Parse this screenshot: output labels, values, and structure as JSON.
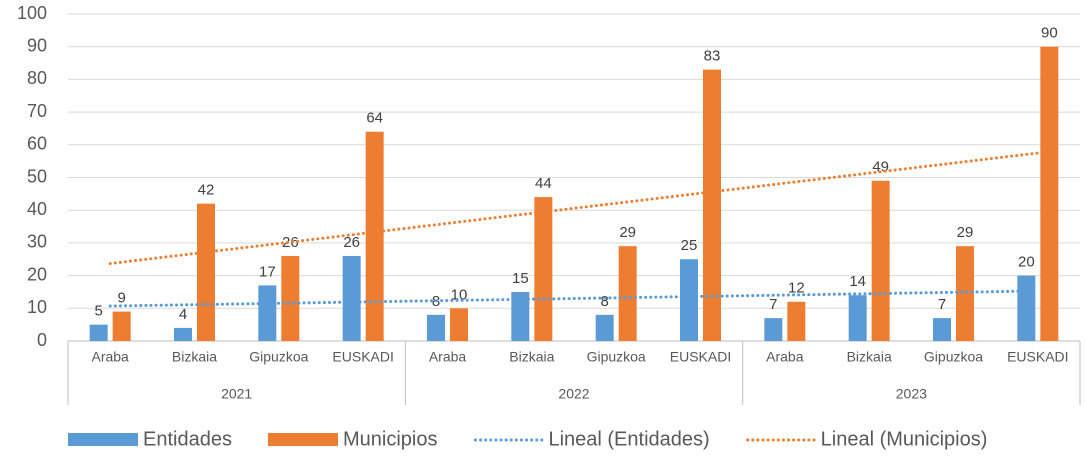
{
  "chart_data": {
    "type": "bar",
    "categories": [
      "Araba",
      "Bizkaia",
      "Gipuzkoa",
      "EUSKADI",
      "Araba",
      "Bizkaia",
      "Gipuzkoa",
      "EUSKADI",
      "Araba",
      "Bizkaia",
      "Gipuzkoa",
      "EUSKADI"
    ],
    "category_groups": [
      "2021",
      "2022",
      "2023"
    ],
    "series": [
      {
        "name": "Entidades",
        "color": "#5b9bd5",
        "values": [
          5,
          4,
          17,
          26,
          8,
          15,
          8,
          25,
          7,
          14,
          7,
          20
        ]
      },
      {
        "name": "Municipios",
        "color": "#ed7d31",
        "values": [
          9,
          42,
          26,
          64,
          10,
          44,
          29,
          83,
          12,
          49,
          29,
          90
        ]
      }
    ],
    "trendlines": [
      {
        "name": "Lineal (Entidades)",
        "color": "#5b9bd5"
      },
      {
        "name": "Lineal (Municipios)",
        "color": "#ed7d31"
      }
    ],
    "ylim": [
      0,
      100
    ],
    "yticks": [
      0,
      10,
      20,
      30,
      40,
      50,
      60,
      70,
      80,
      90,
      100
    ],
    "grid": true,
    "legend": "bottom"
  }
}
